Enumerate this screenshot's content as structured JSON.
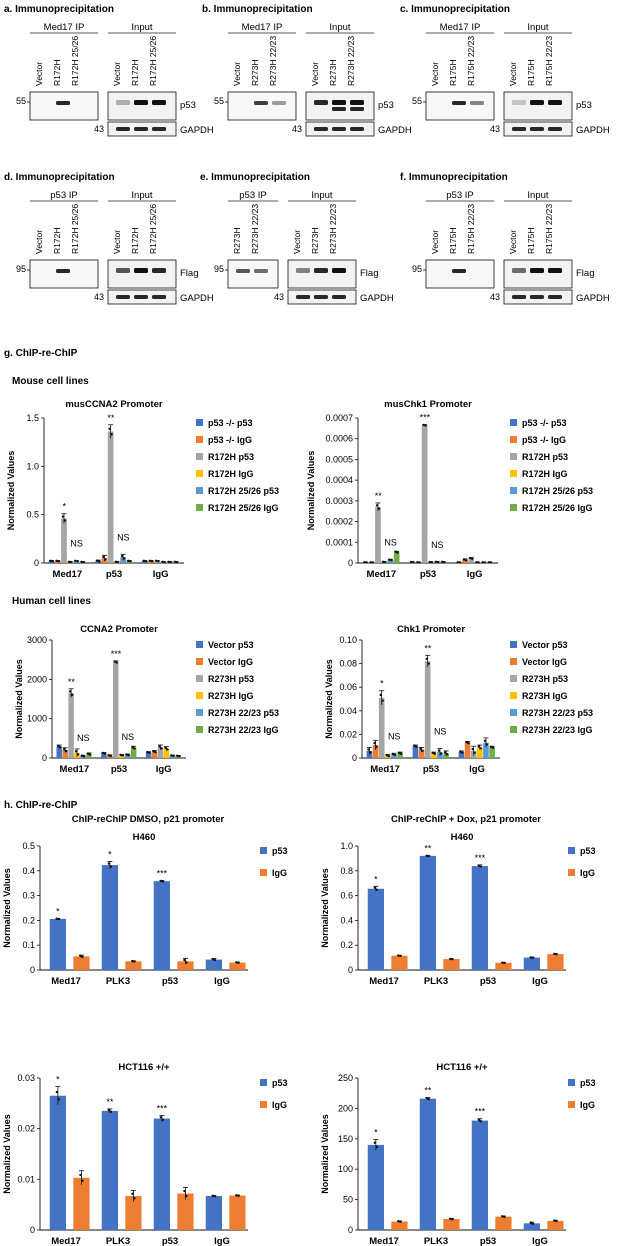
{
  "section_titles": {
    "a": "a. Immunoprecipitation",
    "b": "b. Immunoprecipitation",
    "c": "c. Immunoprecipitation",
    "d": "d. Immunoprecipitation",
    "e": "e. Immunoprecipitation",
    "f": "f. Immunoprecipitation",
    "g": "g. ChIP-re-ChIP",
    "h": "h. ChIP-re-ChIP",
    "mouse": "Mouse cell lines",
    "human": "Human cell lines"
  },
  "blots": [
    {
      "id": "a",
      "left_group": "Med17 IP",
      "right_group": "Input",
      "lanes_left": [
        "Vector",
        "R172H",
        "R172H 25/26"
      ],
      "lanes_right": [
        "Vector",
        "R172H",
        "R172H 25/26"
      ],
      "marker_top": "55",
      "marker_bottom": "43",
      "label_top": "p53",
      "label_bottom": "GAPDH"
    },
    {
      "id": "b",
      "left_group": "Med17 IP",
      "right_group": "Input",
      "lanes_left": [
        "Vector",
        "R273H",
        "R273H 22/23"
      ],
      "lanes_right": [
        "Vector",
        "R273H",
        "R273H 22/23"
      ],
      "marker_top": "55",
      "marker_bottom": "43",
      "label_top": "p53",
      "label_bottom": "GAPDH"
    },
    {
      "id": "c",
      "left_group": "Med17 IP",
      "right_group": "Input",
      "lanes_left": [
        "Vector",
        "R175H",
        "R175H 22/23"
      ],
      "lanes_right": [
        "Vector",
        "R175H",
        "R175H 22/23"
      ],
      "marker_top": "55",
      "marker_bottom": "43",
      "label_top": "p53",
      "label_bottom": "GAPDH"
    },
    {
      "id": "d",
      "left_group": "p53 IP",
      "right_group": "Input",
      "lanes_left": [
        "Vector",
        "R172H",
        "R172H 25/26"
      ],
      "lanes_right": [
        "Vector",
        "R172H",
        "R172H 25/26"
      ],
      "marker_top": "95",
      "marker_bottom": "43",
      "label_top": "Flag",
      "label_bottom": "GAPDH"
    },
    {
      "id": "e",
      "left_group": "p53 IP",
      "right_group": "Input",
      "lanes_left": [
        "R273H",
        "R273H 22/23"
      ],
      "lanes_right": [
        "Vector",
        "R273H",
        "R273H 22/23"
      ],
      "marker_top": "95",
      "marker_bottom": "43",
      "label_top": "Flag",
      "label_bottom": "GAPDH"
    },
    {
      "id": "f",
      "left_group": "p53 IP",
      "right_group": "Input",
      "lanes_left": [
        "Vector",
        "R175H",
        "R175H 22/23"
      ],
      "lanes_right": [
        "Vector",
        "R175H",
        "R175H 22/23"
      ],
      "marker_top": "95",
      "marker_bottom": "43",
      "label_top": "Flag",
      "label_bottom": "GAPDH"
    }
  ],
  "chart_data": [
    {
      "type": "bar",
      "title": "musCCNA2 Promoter",
      "ylabel": "Normalized Values",
      "categories": [
        "Med17",
        "p53",
        "IgG"
      ],
      "yticks": [
        "0",
        "0.5",
        "1.0",
        "1.5"
      ],
      "ylim": [
        0,
        1.5
      ],
      "series": [
        {
          "name": "p53 -/- p53",
          "color": "#4472c4",
          "values": [
            0.02,
            0.02,
            0.02
          ],
          "err": [
            0.005,
            0.01,
            0.005
          ]
        },
        {
          "name": "p53 -/- IgG",
          "color": "#ed7d31",
          "values": [
            0.02,
            0.05,
            0.02
          ],
          "err": [
            0.005,
            0.03,
            0.005
          ]
        },
        {
          "name": "R172H p53",
          "color": "#a5a5a5",
          "values": [
            0.46,
            1.36,
            0.02
          ],
          "err": [
            0.05,
            0.07,
            0.005
          ]
        },
        {
          "name": "R172H IgG",
          "color": "#ffc000",
          "values": [
            0.01,
            0.01,
            0.01
          ],
          "err": [
            0.005,
            0.005,
            0.005
          ]
        },
        {
          "name": "R172H 25/26 p53",
          "color": "#5b9bd5",
          "values": [
            0.02,
            0.06,
            0.01
          ],
          "err": [
            0.005,
            0.03,
            0.005
          ]
        },
        {
          "name": "R172H 25/26 IgG",
          "color": "#70ad47",
          "values": [
            0.01,
            0.02,
            0.01
          ],
          "err": [
            0.005,
            0.005,
            0.005
          ]
        }
      ],
      "annotations": [
        {
          "cat": 0,
          "series": 2,
          "text": "*"
        },
        {
          "cat": 0,
          "series": 4,
          "text": "NS"
        },
        {
          "cat": 1,
          "series": 2,
          "text": "**"
        },
        {
          "cat": 1,
          "series": 4,
          "text": "NS"
        }
      ]
    },
    {
      "type": "bar",
      "title": "musChk1 Promoter",
      "ylabel": "Normalized Values",
      "categories": [
        "Med17",
        "p53",
        "IgG"
      ],
      "yticks": [
        "0",
        "0.0001",
        "0.0002",
        "0.0003",
        "0.0004",
        "0.0005",
        "0.0006",
        "0.0007"
      ],
      "ylim": [
        0,
        0.0007
      ],
      "series": [
        {
          "name": "p53 -/- p53",
          "color": "#4472c4",
          "values": [
            3e-06,
            4e-06,
            3e-06
          ],
          "err": [
            1e-06,
            1e-06,
            1e-06
          ]
        },
        {
          "name": "p53 -/- IgG",
          "color": "#ed7d31",
          "values": [
            3e-06,
            3e-06,
            1.5e-05
          ],
          "err": [
            1e-06,
            1e-06,
            5e-06
          ]
        },
        {
          "name": "R172H p53",
          "color": "#a5a5a5",
          "values": [
            0.00027,
            0.000665,
            2.2e-05
          ],
          "err": [
            2e-05,
            3e-06,
            4e-06
          ]
        },
        {
          "name": "R172H IgG",
          "color": "#ffc000",
          "values": [
            5e-06,
            4e-06,
            3e-06
          ],
          "err": [
            1e-06,
            1e-06,
            1e-06
          ]
        },
        {
          "name": "R172H 25/26 p53",
          "color": "#5b9bd5",
          "values": [
            1.5e-05,
            5e-06,
            3e-06
          ],
          "err": [
            3e-06,
            1e-06,
            1e-06
          ]
        },
        {
          "name": "R172H 25/26 IgG",
          "color": "#70ad47",
          "values": [
            5.2e-05,
            5e-06,
            3e-06
          ],
          "err": [
            5e-06,
            1e-06,
            1e-06
          ]
        }
      ],
      "annotations": [
        {
          "cat": 0,
          "series": 2,
          "text": "**"
        },
        {
          "cat": 0,
          "series": 4,
          "text": "NS"
        },
        {
          "cat": 1,
          "series": 2,
          "text": "***"
        },
        {
          "cat": 1,
          "series": 4,
          "text": "NS"
        }
      ]
    },
    {
      "type": "bar",
      "title": "CCNA2 Promoter",
      "ylabel": "Normalized Values",
      "categories": [
        "Med17",
        "p53",
        "IgG"
      ],
      "yticks": [
        "0",
        "1000",
        "2000",
        "3000"
      ],
      "ylim": [
        0,
        3000
      ],
      "series": [
        {
          "name": "Vector p53",
          "color": "#4472c4",
          "values": [
            290,
            120,
            140
          ],
          "err": [
            40,
            20,
            20
          ]
        },
        {
          "name": "Vector IgG",
          "color": "#ed7d31",
          "values": [
            200,
            60,
            160
          ],
          "err": [
            60,
            20,
            30
          ]
        },
        {
          "name": "R273H p53",
          "color": "#a5a5a5",
          "values": [
            1650,
            2440,
            270
          ],
          "err": [
            110,
            30,
            60
          ]
        },
        {
          "name": "R273H IgG",
          "color": "#ffc000",
          "values": [
            130,
            70,
            240
          ],
          "err": [
            100,
            20,
            50
          ]
        },
        {
          "name": "R273H 22/23 p53",
          "color": "#5b9bd5",
          "values": [
            50,
            80,
            60
          ],
          "err": [
            20,
            20,
            15
          ]
        },
        {
          "name": "R273H 22/23 IgG",
          "color": "#70ad47",
          "values": [
            100,
            260,
            50
          ],
          "err": [
            30,
            40,
            15
          ]
        }
      ],
      "annotations": [
        {
          "cat": 0,
          "series": 2,
          "text": "**"
        },
        {
          "cat": 0,
          "series": 4,
          "text": "NS"
        },
        {
          "cat": 1,
          "series": 2,
          "text": "***"
        },
        {
          "cat": 1,
          "series": 4,
          "text": "NS"
        }
      ]
    },
    {
      "type": "bar",
      "title": "Chk1 Promoter",
      "ylabel": "Normalized Values",
      "categories": [
        "Med17",
        "p53",
        "IgG"
      ],
      "yticks": [
        "0",
        "0.02",
        "0.04",
        "0.06",
        "0.08",
        "0.10"
      ],
      "ylim": [
        0,
        0.1
      ],
      "series": [
        {
          "name": "Vector p53",
          "color": "#4472c4",
          "values": [
            0.006,
            0.01,
            0.005
          ],
          "err": [
            0.003,
            0.001,
            0.001
          ]
        },
        {
          "name": "Vector IgG",
          "color": "#ed7d31",
          "values": [
            0.011,
            0.007,
            0.013
          ],
          "err": [
            0.004,
            0.002,
            0.001
          ]
        },
        {
          "name": "R273H p53",
          "color": "#a5a5a5",
          "values": [
            0.051,
            0.082,
            0.006
          ],
          "err": [
            0.006,
            0.005,
            0.004
          ]
        },
        {
          "name": "R273H IgG",
          "color": "#ffc000",
          "values": [
            0.002,
            0.004,
            0.009
          ],
          "err": [
            0.001,
            0.001,
            0.002
          ]
        },
        {
          "name": "R273H 22/23 p53",
          "color": "#5b9bd5",
          "values": [
            0.003,
            0.005,
            0.013
          ],
          "err": [
            0.001,
            0.003,
            0.004
          ]
        },
        {
          "name": "R273H 22/23 IgG",
          "color": "#70ad47",
          "values": [
            0.004,
            0.004,
            0.009
          ],
          "err": [
            0.001,
            0.002,
            0.001
          ]
        }
      ],
      "annotations": [
        {
          "cat": 0,
          "series": 2,
          "text": "*"
        },
        {
          "cat": 0,
          "series": 4,
          "text": "NS"
        },
        {
          "cat": 1,
          "series": 2,
          "text": "**"
        },
        {
          "cat": 1,
          "series": 4,
          "text": "NS"
        }
      ]
    },
    {
      "type": "bar",
      "heading": "ChIP-reChIP DMSO, p21 promoter",
      "title": "H460",
      "ylabel": "Normalized Values",
      "categories": [
        "Med17",
        "PLK3",
        "p53",
        "IgG"
      ],
      "yticks": [
        "0",
        "0.1",
        "0.2",
        "0.3",
        "0.4",
        "0.5"
      ],
      "ylim": [
        0,
        0.5
      ],
      "series": [
        {
          "name": "p53",
          "color": "#4472c4",
          "values": [
            0.206,
            0.423,
            0.358,
            0.042
          ],
          "err": [
            0.002,
            0.015,
            0.003,
            0.004
          ]
        },
        {
          "name": "IgG",
          "color": "#ed7d31",
          "values": [
            0.055,
            0.035,
            0.035,
            0.03
          ],
          "err": [
            0.005,
            0.002,
            0.012,
            0.002
          ]
        }
      ],
      "annotations": [
        {
          "cat": 0,
          "series": 0,
          "text": "*"
        },
        {
          "cat": 1,
          "series": 0,
          "text": "*"
        },
        {
          "cat": 2,
          "series": 0,
          "text": "***"
        }
      ]
    },
    {
      "type": "bar",
      "heading": "ChIP-reChIP + Dox, p21 promoter",
      "title": "H460",
      "ylabel": "Normalized Values",
      "categories": [
        "Med17",
        "PLK3",
        "p53",
        "IgG"
      ],
      "yticks": [
        "0",
        "0.2",
        "0.4",
        "0.6",
        "0.8",
        "1.0"
      ],
      "ylim": [
        0,
        1.0
      ],
      "series": [
        {
          "name": "p53",
          "color": "#4472c4",
          "values": [
            0.655,
            0.92,
            0.838,
            0.1
          ],
          "err": [
            0.02,
            0.003,
            0.01,
            0.003
          ]
        },
        {
          "name": "IgG",
          "color": "#ed7d31",
          "values": [
            0.115,
            0.088,
            0.058,
            0.128
          ],
          "err": [
            0.003,
            0.002,
            0.003,
            0.003
          ]
        }
      ],
      "annotations": [
        {
          "cat": 0,
          "series": 0,
          "text": "*"
        },
        {
          "cat": 1,
          "series": 0,
          "text": "**"
        },
        {
          "cat": 2,
          "series": 0,
          "text": "***"
        }
      ]
    },
    {
      "type": "bar",
      "title": "HCT116 +/+",
      "ylabel": "Normalized Values",
      "categories": [
        "Med17",
        "PLK3",
        "p53",
        "IgG"
      ],
      "yticks": [
        "0",
        "0.01",
        "0.02",
        "0.03"
      ],
      "ylim": [
        0,
        0.03
      ],
      "series": [
        {
          "name": "p53",
          "color": "#4472c4",
          "values": [
            0.0265,
            0.0235,
            0.022,
            0.0067
          ],
          "err": [
            0.0018,
            0.0004,
            0.0006,
            0.0001
          ]
        },
        {
          "name": "IgG",
          "color": "#ed7d31",
          "values": [
            0.0103,
            0.0067,
            0.0072,
            0.0068
          ],
          "err": [
            0.0014,
            0.0011,
            0.0012,
            0.0001
          ]
        }
      ],
      "annotations": [
        {
          "cat": 0,
          "series": 0,
          "text": "*"
        },
        {
          "cat": 1,
          "series": 0,
          "text": "**"
        },
        {
          "cat": 2,
          "series": 0,
          "text": "***"
        }
      ]
    },
    {
      "type": "bar",
      "title": "HCT116 +/+",
      "ylabel": "Normalized Values",
      "categories": [
        "Med17",
        "PLK3",
        "p53",
        "IgG"
      ],
      "yticks": [
        "0",
        "50",
        "100",
        "150",
        "200",
        "250"
      ],
      "ylim": [
        0,
        250
      ],
      "series": [
        {
          "name": "p53",
          "color": "#4472c4",
          "values": [
            140,
            216,
            180,
            11
          ],
          "err": [
            9,
            2,
            3,
            2
          ]
        },
        {
          "name": "IgG",
          "color": "#ed7d31",
          "values": [
            14,
            18,
            22,
            15
          ],
          "err": [
            1,
            1,
            1,
            1
          ]
        }
      ],
      "annotations": [
        {
          "cat": 0,
          "series": 0,
          "text": "*"
        },
        {
          "cat": 1,
          "series": 0,
          "text": "**"
        },
        {
          "cat": 2,
          "series": 0,
          "text": "***"
        }
      ]
    }
  ]
}
